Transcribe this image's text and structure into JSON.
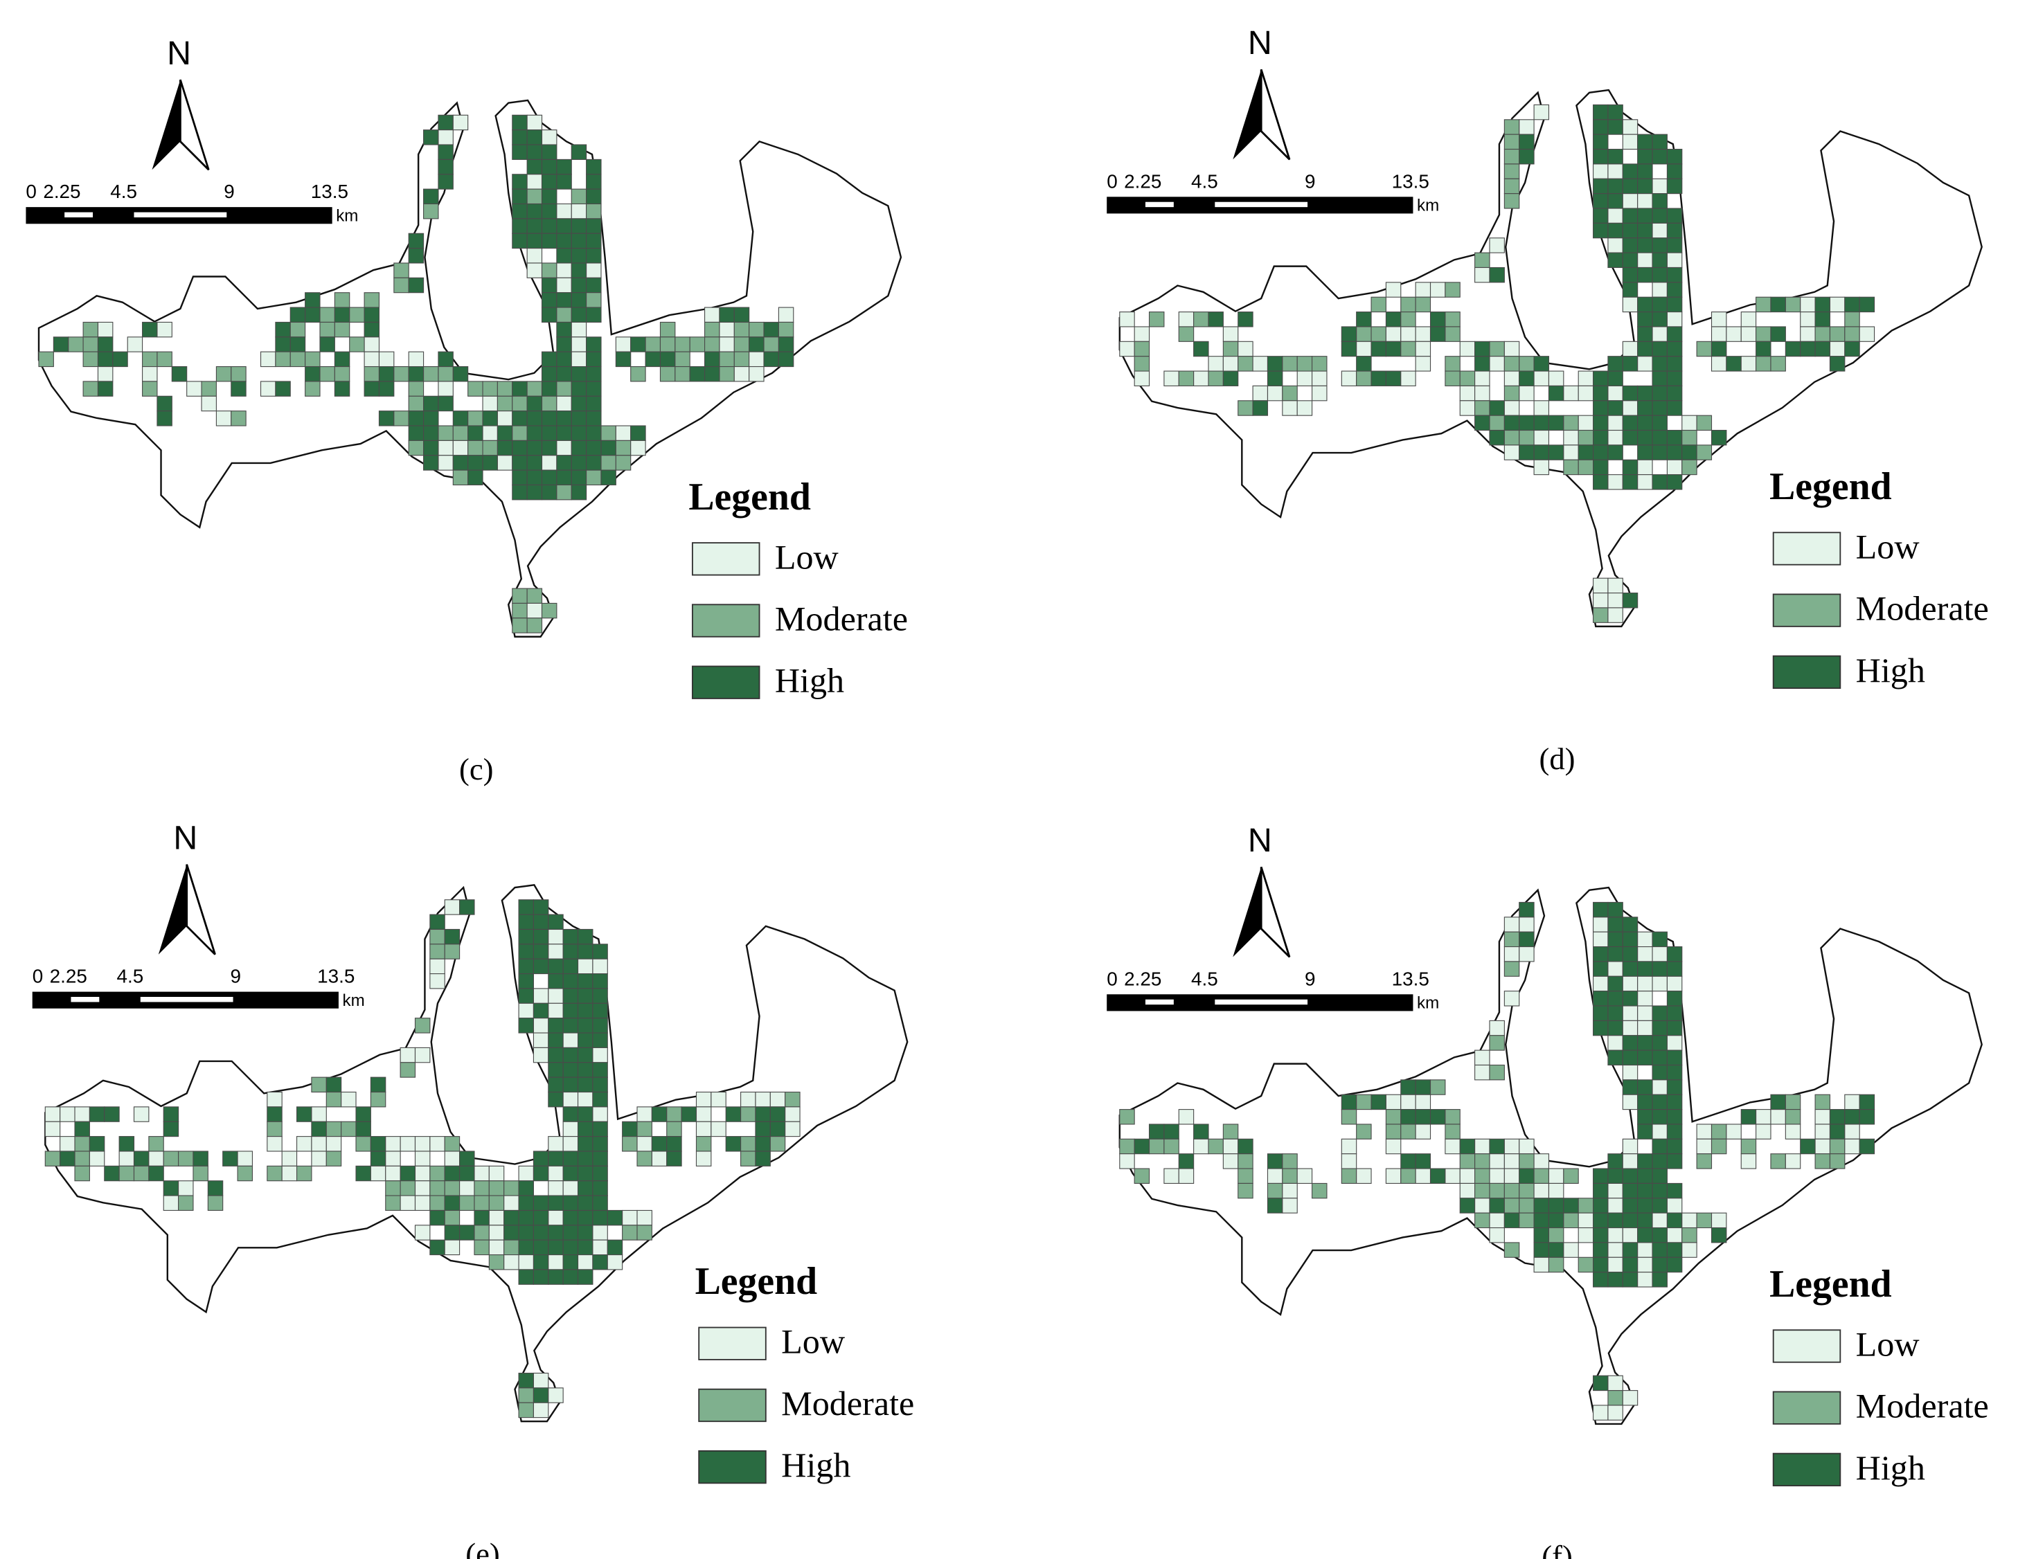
{
  "panels": [
    {
      "caption": "(c)",
      "north": "N",
      "scale_labels": [
        "0",
        "2.25",
        "4.5",
        "9",
        "13.5"
      ],
      "scale_unit": "km",
      "legend": {
        "title": "Legend",
        "items": [
          {
            "label": "Low",
            "color": "#e4f4ea"
          },
          {
            "label": "Moderate",
            "color": "#7fb08e"
          },
          {
            "label": "High",
            "color": "#2a6b41"
          }
        ]
      }
    },
    {
      "caption": "(d)",
      "north": "N",
      "scale_labels": [
        "0",
        "2.25",
        "4.5",
        "9",
        "13.5"
      ],
      "scale_unit": "km",
      "legend": {
        "title": "Legend",
        "items": [
          {
            "label": "Low",
            "color": "#e4f4ea"
          },
          {
            "label": "Moderate",
            "color": "#7fb08e"
          },
          {
            "label": "High",
            "color": "#2a6b41"
          }
        ]
      }
    },
    {
      "caption": "(e)",
      "north": "N",
      "scale_labels": [
        "0",
        "2.25",
        "4.5",
        "9",
        "13.5"
      ],
      "scale_unit": "km",
      "legend": {
        "title": "Legend",
        "items": [
          {
            "label": "Low",
            "color": "#e4f4ea"
          },
          {
            "label": "Moderate",
            "color": "#7fb08e"
          },
          {
            "label": "High",
            "color": "#2a6b41"
          }
        ]
      }
    },
    {
      "caption": "(f)",
      "north": "N",
      "scale_labels": [
        "0",
        "2.25",
        "4.5",
        "9",
        "13.5"
      ],
      "scale_unit": "km",
      "legend": {
        "title": "Legend",
        "items": [
          {
            "label": "Low",
            "color": "#e4f4ea"
          },
          {
            "label": "Moderate",
            "color": "#7fb08e"
          },
          {
            "label": "High",
            "color": "#2a6b41"
          }
        ]
      }
    }
  ]
}
